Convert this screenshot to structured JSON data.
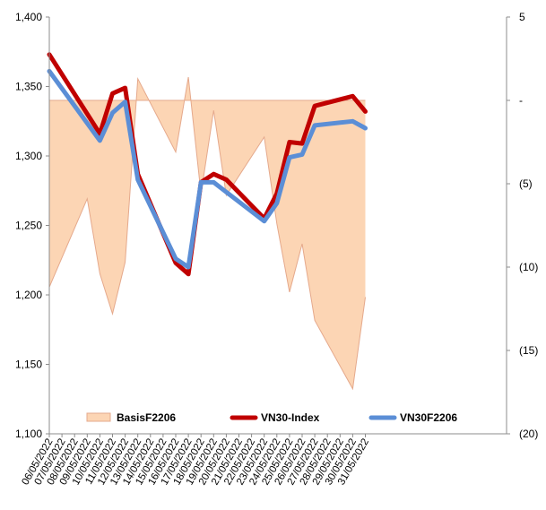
{
  "chart_data": {
    "type": "line",
    "title": "",
    "xlabel": "",
    "ylabel": "",
    "y2label": "",
    "categories": [
      "06/05/2022",
      "07/05/2022",
      "08/05/2022",
      "09/05/2022",
      "10/05/2022",
      "11/05/2022",
      "12/05/2022",
      "13/05/2022",
      "14/05/2022",
      "15/05/2022",
      "16/05/2022",
      "17/05/2022",
      "18/05/2022",
      "19/05/2022",
      "20/05/2022",
      "21/05/2022",
      "22/05/2022",
      "23/05/2022",
      "24/05/2022",
      "25/05/2022",
      "26/05/2022",
      "27/05/2022",
      "28/05/2022",
      "29/05/2022",
      "30/05/2022",
      "31/05/2022"
    ],
    "x_dates": [
      "2022-05-06",
      "2022-05-10",
      "2022-05-11",
      "2022-05-12",
      "2022-05-13",
      "2022-05-16",
      "2022-05-17",
      "2022-05-18",
      "2022-05-19",
      "2022-05-20",
      "2022-05-23",
      "2022-05-24",
      "2022-05-25",
      "2022-05-26",
      "2022-05-27",
      "2022-05-30",
      "2022-05-31"
    ],
    "ylim": [
      1100,
      1400
    ],
    "y_ticks": [
      "1,100",
      "1,150",
      "1,200",
      "1,250",
      "1,300",
      "1,350",
      "1,400"
    ],
    "y2lim": [
      -20,
      5
    ],
    "y2_ticks": [
      "5",
      "-",
      "(5)",
      "(10)",
      "(15)",
      "(20)"
    ],
    "grid": false,
    "legend_position": "bottom",
    "series": [
      {
        "name": "BasisF2206",
        "axis": "right",
        "style": "area",
        "color": "#FCD5B4",
        "edge_color": "#E5A98C",
        "x": [
          "2022-05-06",
          "2022-05-09",
          "2022-05-10",
          "2022-05-11",
          "2022-05-12",
          "2022-05-13",
          "2022-05-16",
          "2022-05-17",
          "2022-05-18",
          "2022-05-19",
          "2022-05-20",
          "2022-05-23",
          "2022-05-24",
          "2022-05-25",
          "2022-05-26",
          "2022-05-27",
          "2022-05-30",
          "2022-05-31"
        ],
        "values": [
          -11.2,
          -5.9,
          -10.4,
          -12.8,
          -9.7,
          1.3,
          -3.1,
          1.4,
          -5.6,
          -0.6,
          -5.7,
          -2.2,
          -7.4,
          -11.5,
          -8.6,
          -13.2,
          -17.3,
          -11.8
        ]
      },
      {
        "name": "VN30-Index",
        "axis": "left",
        "style": "line",
        "color": "#C00000",
        "x": [
          "2022-05-06",
          "2022-05-10",
          "2022-05-11",
          "2022-05-12",
          "2022-05-13",
          "2022-05-16",
          "2022-05-17",
          "2022-05-18",
          "2022-05-19",
          "2022-05-20",
          "2022-05-23",
          "2022-05-24",
          "2022-05-25",
          "2022-05-26",
          "2022-05-27",
          "2022-05-30",
          "2022-05-31"
        ],
        "values": [
          1373,
          1316,
          1345,
          1349,
          1287,
          1223,
          1215,
          1281,
          1287,
          1283,
          1255,
          1273,
          1310,
          1309,
          1336,
          1343,
          1332
        ]
      },
      {
        "name": "VN30F2206",
        "axis": "left",
        "style": "line",
        "color": "#5B8ED6",
        "x": [
          "2022-05-06",
          "2022-05-10",
          "2022-05-11",
          "2022-05-12",
          "2022-05-13",
          "2022-05-16",
          "2022-05-17",
          "2022-05-18",
          "2022-05-19",
          "2022-05-20",
          "2022-05-23",
          "2022-05-24",
          "2022-05-25",
          "2022-05-26",
          "2022-05-27",
          "2022-05-30",
          "2022-05-31"
        ],
        "values": [
          1361,
          1311,
          1331,
          1339,
          1283,
          1226,
          1220,
          1281,
          1281,
          1274,
          1253,
          1266,
          1299,
          1301,
          1322,
          1325,
          1320
        ]
      }
    ]
  }
}
